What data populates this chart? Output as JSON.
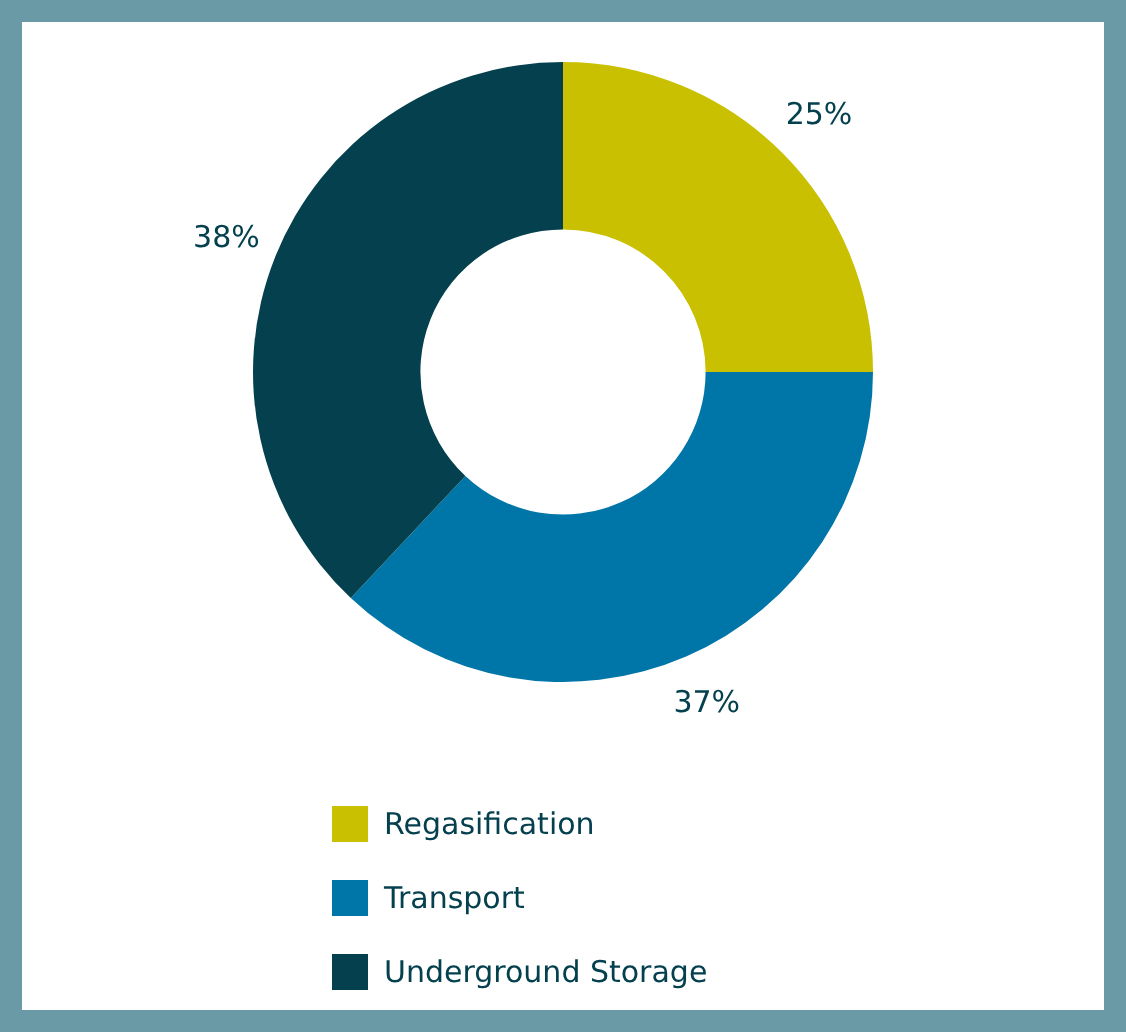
{
  "chart_data": {
    "type": "donut",
    "categories": [
      "Regasification",
      "Transport",
      "Underground Storage"
    ],
    "values": [
      25,
      37,
      38
    ],
    "colors": [
      "#c8c000",
      "#0075a8",
      "#04404e"
    ],
    "value_labels": [
      "25%",
      "37%",
      "38%"
    ],
    "legend": "bottom"
  }
}
